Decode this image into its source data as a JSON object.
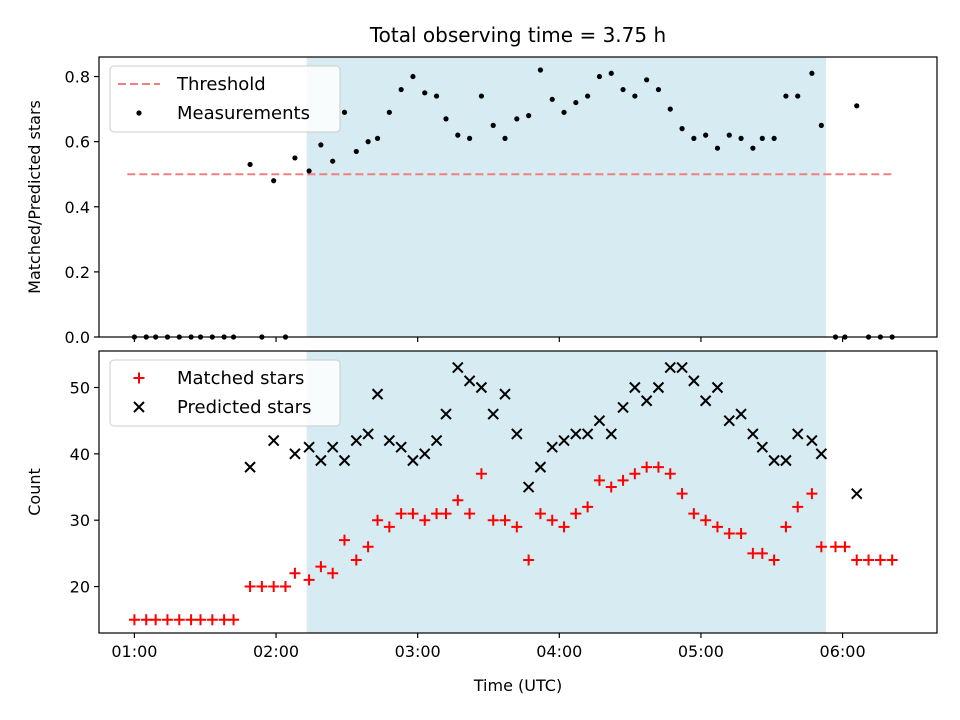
{
  "chart_data": [
    {
      "type": "scatter",
      "title": "Total observing time = 3.75 h",
      "xlabel": "",
      "ylabel": "Matched/Predicted stars",
      "x_unit": "Time (UTC)",
      "xlim": [
        "00:45",
        "06:40"
      ],
      "ylim": [
        0,
        0.86
      ],
      "yticks": [
        0.0,
        0.2,
        0.4,
        0.6,
        0.8
      ],
      "ytick_labels": [
        "0.0",
        "0.2",
        "0.4",
        "0.6",
        "0.8"
      ],
      "shaded_span": {
        "from": "02:13",
        "to": "05:53",
        "color": "#add8e6"
      },
      "legend_position": "top-left",
      "series": [
        {
          "name": "Threshold",
          "kind": "line",
          "style": "dashed",
          "color": "#f08080",
          "points": [
            [
              "00:57",
              0.5
            ],
            [
              "06:22",
              0.5
            ]
          ]
        },
        {
          "name": "Measurements",
          "kind": "scatter",
          "marker": "dot",
          "color": "#000000",
          "points": [
            [
              "01:00",
              0
            ],
            [
              "01:05",
              0
            ],
            [
              "01:09",
              0
            ],
            [
              "01:14",
              0
            ],
            [
              "01:19",
              0
            ],
            [
              "01:24",
              0
            ],
            [
              "01:28",
              0
            ],
            [
              "01:33",
              0
            ],
            [
              "01:38",
              0
            ],
            [
              "01:42",
              0
            ],
            [
              "01:49",
              0.53
            ],
            [
              "01:54",
              0
            ],
            [
              "01:59",
              0.48
            ],
            [
              "02:04",
              0
            ],
            [
              "02:08",
              0.55
            ],
            [
              "02:14",
              0.51
            ],
            [
              "02:19",
              0.59
            ],
            [
              "02:24",
              0.54
            ],
            [
              "02:29",
              0.69
            ],
            [
              "02:34",
              0.57
            ],
            [
              "02:39",
              0.6
            ],
            [
              "02:43",
              0.61
            ],
            [
              "02:48",
              0.69
            ],
            [
              "02:53",
              0.76
            ],
            [
              "02:58",
              0.8
            ],
            [
              "03:03",
              0.75
            ],
            [
              "03:08",
              0.74
            ],
            [
              "03:12",
              0.67
            ],
            [
              "03:17",
              0.62
            ],
            [
              "03:22",
              0.61
            ],
            [
              "03:27",
              0.74
            ],
            [
              "03:32",
              0.65
            ],
            [
              "03:37",
              0.61
            ],
            [
              "03:42",
              0.67
            ],
            [
              "03:47",
              0.68
            ],
            [
              "03:52",
              0.82
            ],
            [
              "03:57",
              0.73
            ],
            [
              "04:02",
              0.69
            ],
            [
              "04:07",
              0.72
            ],
            [
              "04:12",
              0.74
            ],
            [
              "04:17",
              0.8
            ],
            [
              "04:22",
              0.81
            ],
            [
              "04:27",
              0.76
            ],
            [
              "04:32",
              0.74
            ],
            [
              "04:37",
              0.79
            ],
            [
              "04:42",
              0.76
            ],
            [
              "04:47",
              0.7
            ],
            [
              "04:52",
              0.64
            ],
            [
              "04:57",
              0.61
            ],
            [
              "05:02",
              0.62
            ],
            [
              "05:07",
              0.58
            ],
            [
              "05:12",
              0.62
            ],
            [
              "05:17",
              0.61
            ],
            [
              "05:22",
              0.58
            ],
            [
              "05:26",
              0.61
            ],
            [
              "05:31",
              0.61
            ],
            [
              "05:36",
              0.74
            ],
            [
              "05:41",
              0.74
            ],
            [
              "05:47",
              0.81
            ],
            [
              "05:51",
              0.65
            ],
            [
              "05:57",
              0
            ],
            [
              "06:01",
              0
            ],
            [
              "06:06",
              0.71
            ],
            [
              "06:11",
              0
            ],
            [
              "06:16",
              0
            ],
            [
              "06:21",
              0
            ]
          ]
        }
      ]
    },
    {
      "type": "scatter",
      "title": "",
      "xlabel": "Time (UTC)",
      "ylabel": "Count",
      "xlim": [
        "00:45",
        "06:40"
      ],
      "ylim": [
        13,
        55.5
      ],
      "yticks": [
        20,
        30,
        40,
        50
      ],
      "ytick_labels": [
        "20",
        "30",
        "40",
        "50"
      ],
      "xticks": [
        "01:00",
        "02:00",
        "03:00",
        "04:00",
        "05:00",
        "06:00"
      ],
      "xtick_labels": [
        "01:00",
        "02:00",
        "03:00",
        "04:00",
        "05:00",
        "06:00"
      ],
      "shaded_span": {
        "from": "02:13",
        "to": "05:53",
        "color": "#add8e6"
      },
      "legend_position": "top-left",
      "series": [
        {
          "name": "Matched stars",
          "kind": "scatter",
          "marker": "plus",
          "color": "#ff0000",
          "points": [
            [
              "01:00",
              15
            ],
            [
              "01:05",
              15
            ],
            [
              "01:09",
              15
            ],
            [
              "01:14",
              15
            ],
            [
              "01:19",
              15
            ],
            [
              "01:24",
              15
            ],
            [
              "01:28",
              15
            ],
            [
              "01:33",
              15
            ],
            [
              "01:38",
              15
            ],
            [
              "01:42",
              15
            ],
            [
              "01:49",
              20
            ],
            [
              "01:54",
              20
            ],
            [
              "01:59",
              20
            ],
            [
              "02:04",
              20
            ],
            [
              "02:08",
              22
            ],
            [
              "02:14",
              21
            ],
            [
              "02:19",
              23
            ],
            [
              "02:24",
              22
            ],
            [
              "02:29",
              27
            ],
            [
              "02:34",
              24
            ],
            [
              "02:39",
              26
            ],
            [
              "02:43",
              30
            ],
            [
              "02:48",
              29
            ],
            [
              "02:53",
              31
            ],
            [
              "02:58",
              31
            ],
            [
              "03:03",
              30
            ],
            [
              "03:08",
              31
            ],
            [
              "03:12",
              31
            ],
            [
              "03:17",
              33
            ],
            [
              "03:22",
              31
            ],
            [
              "03:27",
              37
            ],
            [
              "03:32",
              30
            ],
            [
              "03:37",
              30
            ],
            [
              "03:42",
              29
            ],
            [
              "03:47",
              24
            ],
            [
              "03:52",
              31
            ],
            [
              "03:57",
              30
            ],
            [
              "04:02",
              29
            ],
            [
              "04:07",
              31
            ],
            [
              "04:12",
              32
            ],
            [
              "04:17",
              36
            ],
            [
              "04:22",
              35
            ],
            [
              "04:27",
              36
            ],
            [
              "04:32",
              37
            ],
            [
              "04:37",
              38
            ],
            [
              "04:42",
              38
            ],
            [
              "04:47",
              37
            ],
            [
              "04:52",
              34
            ],
            [
              "04:57",
              31
            ],
            [
              "05:02",
              30
            ],
            [
              "05:07",
              29
            ],
            [
              "05:12",
              28
            ],
            [
              "05:17",
              28
            ],
            [
              "05:22",
              25
            ],
            [
              "05:26",
              25
            ],
            [
              "05:31",
              24
            ],
            [
              "05:36",
              29
            ],
            [
              "05:41",
              32
            ],
            [
              "05:47",
              34
            ],
            [
              "05:51",
              26
            ],
            [
              "05:57",
              26
            ],
            [
              "06:01",
              26
            ],
            [
              "06:06",
              24
            ],
            [
              "06:11",
              24
            ],
            [
              "06:16",
              24
            ],
            [
              "06:21",
              24
            ]
          ]
        },
        {
          "name": "Predicted stars",
          "kind": "scatter",
          "marker": "x",
          "color": "#000000",
          "points": [
            [
              "01:49",
              38
            ],
            [
              "01:59",
              42
            ],
            [
              "02:08",
              40
            ],
            [
              "02:14",
              41
            ],
            [
              "02:19",
              39
            ],
            [
              "02:24",
              41
            ],
            [
              "02:29",
              39
            ],
            [
              "02:34",
              42
            ],
            [
              "02:39",
              43
            ],
            [
              "02:43",
              49
            ],
            [
              "02:48",
              42
            ],
            [
              "02:53",
              41
            ],
            [
              "02:58",
              39
            ],
            [
              "03:03",
              40
            ],
            [
              "03:08",
              42
            ],
            [
              "03:12",
              46
            ],
            [
              "03:17",
              53
            ],
            [
              "03:22",
              51
            ],
            [
              "03:27",
              50
            ],
            [
              "03:32",
              46
            ],
            [
              "03:37",
              49
            ],
            [
              "03:42",
              43
            ],
            [
              "03:47",
              35
            ],
            [
              "03:52",
              38
            ],
            [
              "03:57",
              41
            ],
            [
              "04:02",
              42
            ],
            [
              "04:07",
              43
            ],
            [
              "04:12",
              43
            ],
            [
              "04:17",
              45
            ],
            [
              "04:22",
              43
            ],
            [
              "04:27",
              47
            ],
            [
              "04:32",
              50
            ],
            [
              "04:37",
              48
            ],
            [
              "04:42",
              50
            ],
            [
              "04:47",
              53
            ],
            [
              "04:52",
              53
            ],
            [
              "04:57",
              51
            ],
            [
              "05:02",
              48
            ],
            [
              "05:07",
              50
            ],
            [
              "05:12",
              45
            ],
            [
              "05:17",
              46
            ],
            [
              "05:22",
              43
            ],
            [
              "05:26",
              41
            ],
            [
              "05:31",
              39
            ],
            [
              "05:36",
              39
            ],
            [
              "05:41",
              43
            ],
            [
              "05:47",
              42
            ],
            [
              "05:51",
              40
            ],
            [
              "06:06",
              34
            ]
          ]
        }
      ]
    }
  ]
}
